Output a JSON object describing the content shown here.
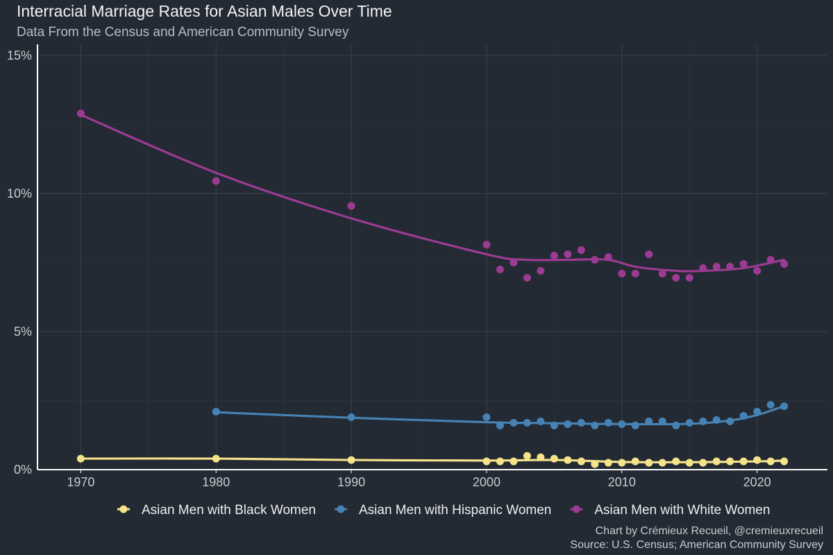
{
  "chart_data": {
    "type": "scatter",
    "title": "Interracial Marriage Rates for Asian Males Over Time",
    "subtitle": "Data From the Census and American Community Survey",
    "xlabel": "",
    "ylabel": "",
    "xlim": [
      1966.8,
      2025.2
    ],
    "ylim": [
      0,
      15.4
    ],
    "x_ticks": [
      1970,
      1980,
      1990,
      2000,
      2010,
      2020
    ],
    "y_ticks": [
      0,
      5,
      10,
      15
    ],
    "y_tick_labels": [
      "0%",
      "5%",
      "10%",
      "15%"
    ],
    "grid": true,
    "legend_position": "bottom",
    "series": [
      {
        "name": "Asian Men with Black Women",
        "color": "#f5e38a",
        "x": [
          1970,
          1980,
          1990,
          2000,
          2001,
          2002,
          2003,
          2004,
          2005,
          2006,
          2007,
          2008,
          2009,
          2010,
          2011,
          2012,
          2013,
          2014,
          2015,
          2016,
          2017,
          2018,
          2019,
          2020,
          2021,
          2022
        ],
        "values": [
          0.4,
          0.4,
          0.35,
          0.3,
          0.3,
          0.3,
          0.5,
          0.45,
          0.4,
          0.35,
          0.3,
          0.2,
          0.25,
          0.25,
          0.3,
          0.25,
          0.25,
          0.3,
          0.25,
          0.25,
          0.3,
          0.3,
          0.3,
          0.35,
          0.3,
          0.3
        ],
        "trend": [
          [
            1970,
            0.4
          ],
          [
            1980,
            0.4
          ],
          [
            1990,
            0.35
          ],
          [
            2000,
            0.33
          ],
          [
            2005,
            0.35
          ],
          [
            2010,
            0.28
          ],
          [
            2015,
            0.27
          ],
          [
            2020,
            0.3
          ],
          [
            2022,
            0.33
          ]
        ]
      },
      {
        "name": "Asian Men with Hispanic Women",
        "color": "#4682b4",
        "x": [
          1980,
          1990,
          2000,
          2001,
          2002,
          2003,
          2004,
          2005,
          2006,
          2007,
          2008,
          2009,
          2010,
          2011,
          2012,
          2013,
          2014,
          2015,
          2016,
          2017,
          2018,
          2019,
          2020,
          2021,
          2022
        ],
        "values": [
          2.1,
          1.9,
          1.9,
          1.6,
          1.7,
          1.7,
          1.75,
          1.6,
          1.65,
          1.7,
          1.6,
          1.7,
          1.65,
          1.6,
          1.75,
          1.75,
          1.6,
          1.7,
          1.75,
          1.8,
          1.75,
          1.95,
          2.1,
          2.35,
          2.3
        ],
        "trend": [
          [
            1980,
            2.08
          ],
          [
            1990,
            1.88
          ],
          [
            2000,
            1.72
          ],
          [
            2005,
            1.68
          ],
          [
            2010,
            1.65
          ],
          [
            2015,
            1.66
          ],
          [
            2018,
            1.78
          ],
          [
            2020,
            1.98
          ],
          [
            2022,
            2.3
          ]
        ]
      },
      {
        "name": "Asian Men with White Women",
        "color": "#9c3b93",
        "x": [
          1970,
          1980,
          1990,
          2000,
          2001,
          2002,
          2003,
          2004,
          2005,
          2006,
          2007,
          2008,
          2009,
          2010,
          2011,
          2012,
          2013,
          2014,
          2015,
          2016,
          2017,
          2018,
          2019,
          2020,
          2021,
          2022
        ],
        "values": [
          12.9,
          10.45,
          9.55,
          8.15,
          7.25,
          7.5,
          6.95,
          7.2,
          7.75,
          7.8,
          7.95,
          7.6,
          7.7,
          7.1,
          7.1,
          7.8,
          7.1,
          6.95,
          6.95,
          7.3,
          7.35,
          7.35,
          7.45,
          7.2,
          7.6,
          7.45
        ],
        "trend": [
          [
            1970,
            12.85
          ],
          [
            1980,
            10.75
          ],
          [
            1990,
            9.1
          ],
          [
            2000,
            7.8
          ],
          [
            2003,
            7.6
          ],
          [
            2006,
            7.6
          ],
          [
            2009,
            7.6
          ],
          [
            2011,
            7.35
          ],
          [
            2014,
            7.2
          ],
          [
            2016,
            7.2
          ],
          [
            2019,
            7.3
          ],
          [
            2022,
            7.6
          ]
        ]
      }
    ],
    "caption": [
      "Chart by Crémieux Recueil, @cremieuxrecueil",
      "Source: U.S. Census; American Community Survey"
    ]
  },
  "colors": {
    "background": "#232a33",
    "grid": "#38414b",
    "axis": "#ffffff"
  }
}
